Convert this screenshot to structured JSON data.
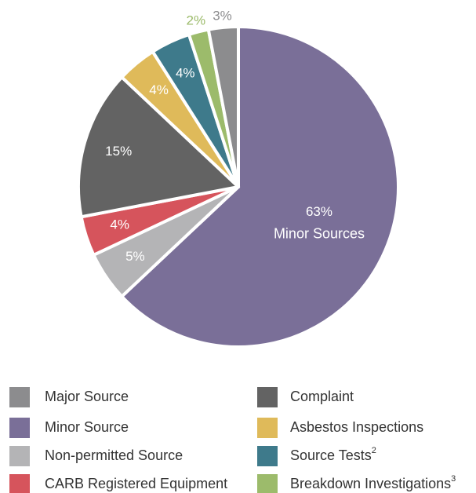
{
  "chart_data": {
    "type": "pie",
    "categories": [
      "Major Source",
      "Minor Source",
      "Non-permitted Source",
      "CARB Registered Equipment",
      "Complaint",
      "Asbestos Inspections",
      "Source Tests",
      "Breakdown Investigations"
    ],
    "category_notes": [
      null,
      null,
      null,
      null,
      null,
      null,
      "2",
      "3"
    ],
    "values": [
      3,
      63,
      5,
      4,
      15,
      4,
      4,
      2
    ],
    "value_labels": [
      "3%",
      "63%",
      "5%",
      "4%",
      "15%",
      "4%",
      "4%",
      "2%"
    ],
    "colors": [
      "#8c8c8e",
      "#7a6f98",
      "#b4b4b6",
      "#d6545c",
      "#636363",
      "#dfba5a",
      "#3e7a8b",
      "#9cbb6b"
    ],
    "annotations": [
      {
        "category": "Minor Source",
        "text": "Minor Sources"
      }
    ],
    "legend": "bottom"
  }
}
